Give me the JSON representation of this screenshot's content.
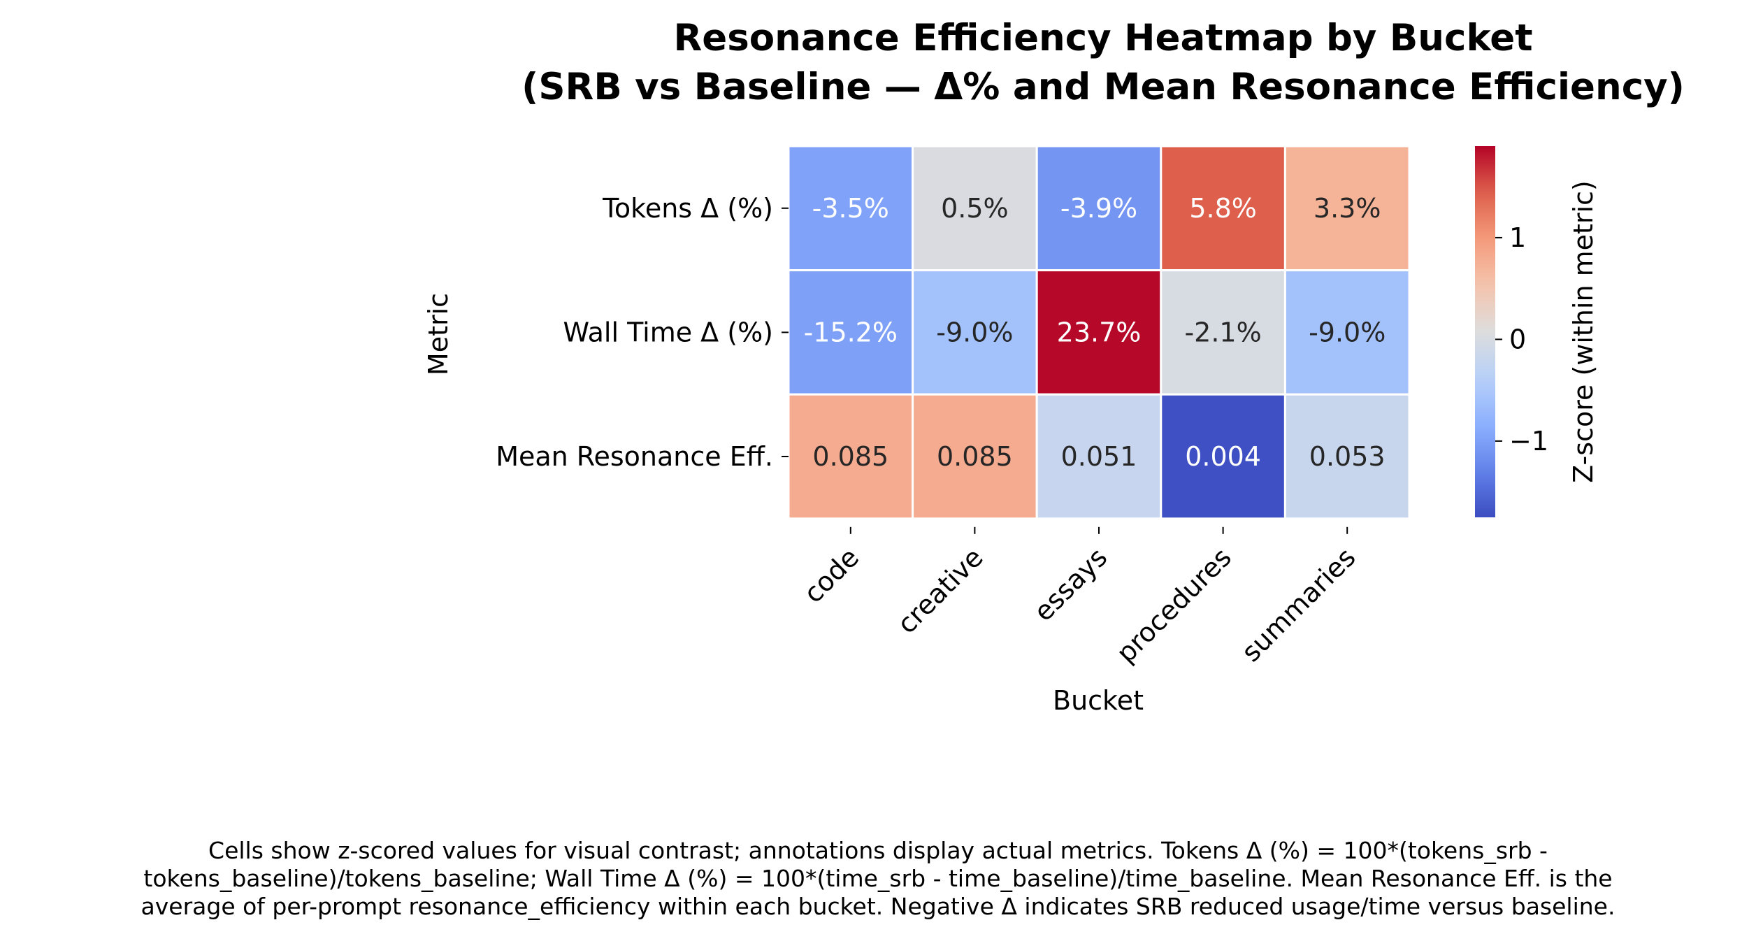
{
  "chart_data": {
    "type": "heatmap",
    "title_lines": [
      "Resonance Efficiency Heatmap by Bucket",
      "(SRB vs Baseline — Δ% and Mean Resonance Efficiency)"
    ],
    "xlabel": "Bucket",
    "ylabel": "Metric",
    "x_categories": [
      "code",
      "creative",
      "essays",
      "procedures",
      "summaries"
    ],
    "y_categories": [
      "Tokens Δ (%)",
      "Wall Time Δ (%)",
      "Mean Resonance Eff."
    ],
    "z_values": [
      [
        -0.98,
        0.02,
        -1.1,
        1.45,
        0.72
      ],
      [
        -1.0,
        -0.6,
        1.88,
        0.0,
        -0.6
      ],
      [
        0.8,
        0.8,
        -0.2,
        -1.72,
        -0.18
      ]
    ],
    "annotations": [
      [
        "-3.5%",
        "0.5%",
        "-3.9%",
        "5.8%",
        "3.3%"
      ],
      [
        "-15.2%",
        "-9.0%",
        "23.7%",
        "-2.1%",
        "-9.0%"
      ],
      [
        "0.085",
        "0.085",
        "0.051",
        "0.004",
        "0.053"
      ]
    ],
    "colormap": "coolwarm",
    "colorbar": {
      "label": "Z-score (within metric)",
      "range": [
        -1.75,
        1.9
      ],
      "ticks": [
        -1,
        0,
        1
      ],
      "tick_labels": [
        "−1",
        "0",
        "1"
      ]
    },
    "caption_lines": [
      "Cells show z-scored values for visual contrast; annotations display actual metrics. Tokens Δ (%) = 100*(tokens_srb -",
      "tokens_baseline)/tokens_baseline; Wall Time Δ (%) = 100*(time_srb - time_baseline)/time_baseline. Mean Resonance Eff. is the",
      "average of per-prompt resonance_efficiency within each bucket. Negative Δ indicates SRB reduced usage/time versus baseline."
    ]
  }
}
